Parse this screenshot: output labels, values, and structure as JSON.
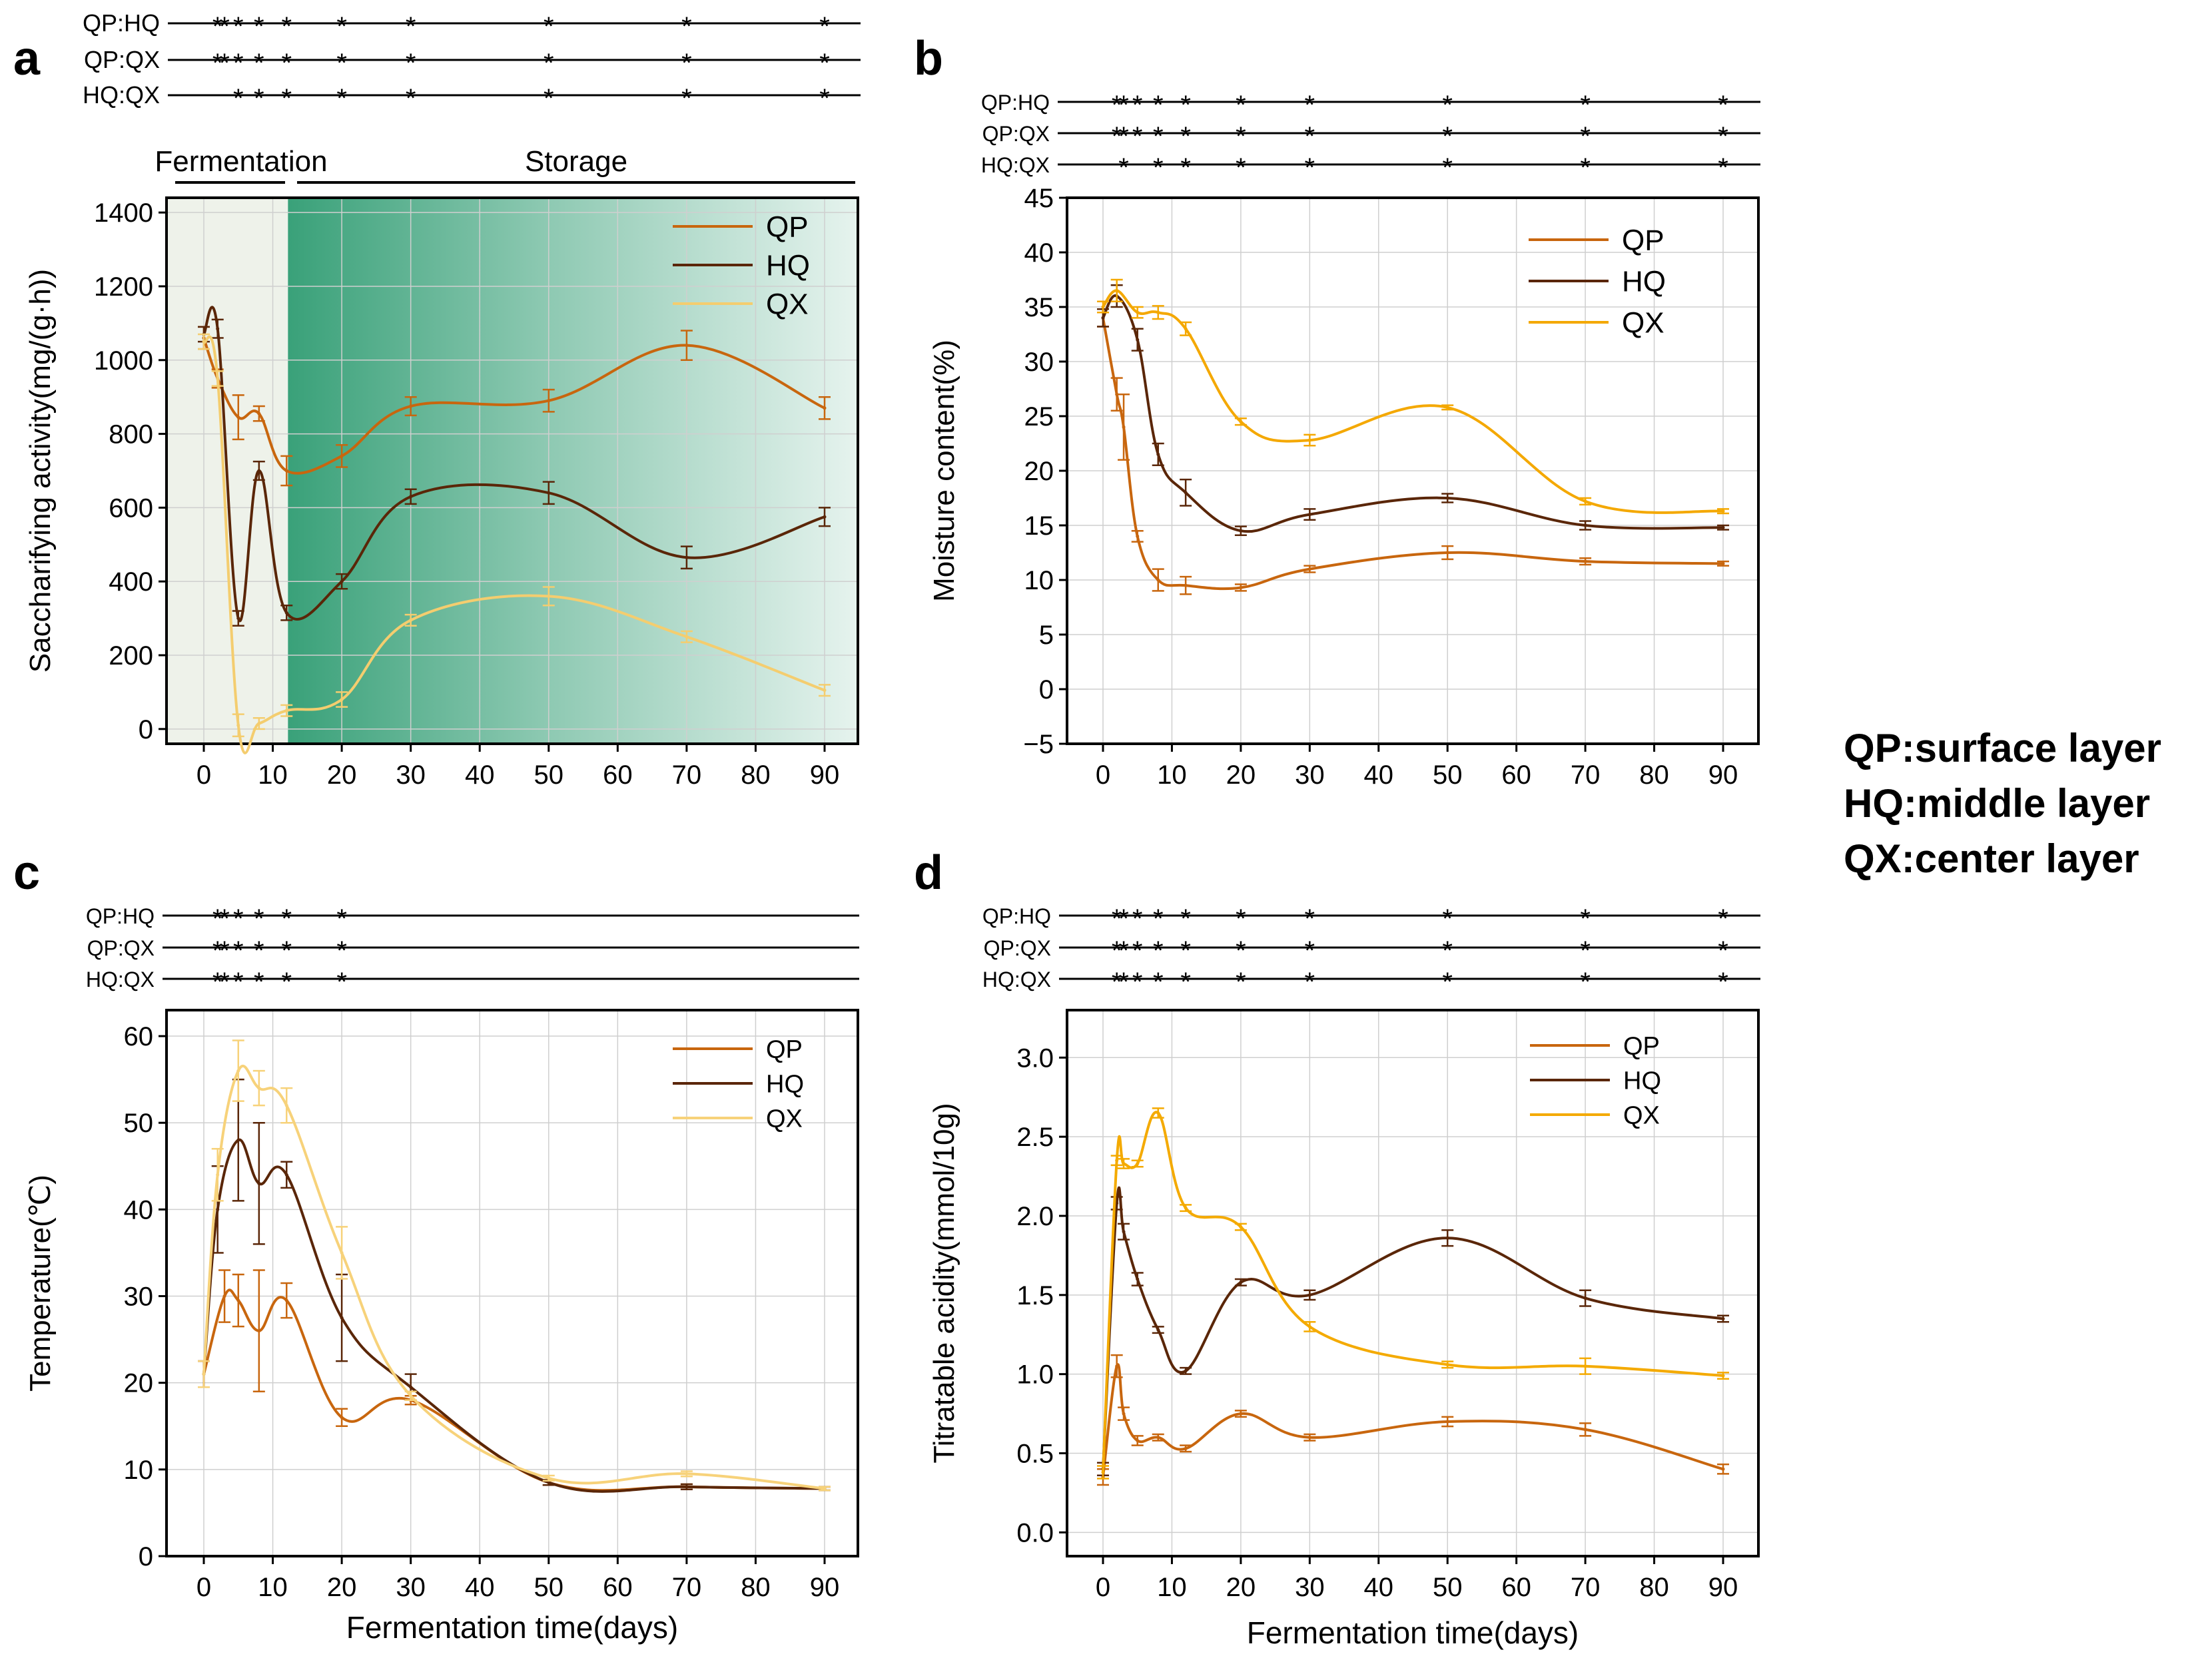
{
  "figure": {
    "legend_key": [
      "QP:surface layer",
      "HQ:middle layer",
      "QX:center layer"
    ],
    "phase_labels": {
      "fermentation": "Fermentation",
      "storage": "Storage"
    }
  },
  "colors": {
    "QP": "#c8660e",
    "HQ": "#5a2608",
    "QX_a": "#f4cd6f",
    "QX_b": "#f4a800",
    "QX_c": "#f7d27a",
    "QX_d": "#f4aa00",
    "storage_shade": "#2f9c72",
    "ferm_shade": "#eef2ea"
  },
  "chart_data": [
    {
      "panel": "a",
      "type": "line",
      "ylabel": "Saccharifying activity(mg/(g·h))",
      "xlabel": "",
      "ylim": [
        -40,
        1440
      ],
      "yticks": [
        0,
        200,
        400,
        600,
        800,
        1000,
        1200,
        1400
      ],
      "xticks": [
        0,
        10,
        20,
        30,
        40,
        50,
        60,
        70,
        80,
        90
      ],
      "significance": [
        {
          "label": "QP:HQ",
          "marks": [
            2,
            3,
            5,
            8,
            12,
            20,
            30,
            50,
            70,
            90
          ]
        },
        {
          "label": "QP:QX",
          "marks": [
            2,
            3,
            5,
            8,
            12,
            20,
            30,
            50,
            70,
            90
          ]
        },
        {
          "label": "HQ:QX",
          "marks": [
            5,
            8,
            12,
            20,
            30,
            50,
            70,
            90
          ]
        }
      ],
      "series": [
        {
          "name": "QP",
          "x": [
            0,
            2,
            5,
            8,
            12,
            20,
            30,
            50,
            70,
            90
          ],
          "values": [
            1060,
            950,
            845,
            855,
            700,
            740,
            875,
            890,
            1040,
            870
          ],
          "err": [
            30,
            25,
            60,
            20,
            40,
            30,
            25,
            30,
            40,
            30
          ]
        },
        {
          "name": "HQ",
          "x": [
            0,
            2,
            5,
            8,
            12,
            20,
            30,
            50,
            70,
            90
          ],
          "values": [
            1070,
            1085,
            300,
            700,
            315,
            400,
            630,
            640,
            465,
            575
          ],
          "err": [
            20,
            25,
            20,
            25,
            20,
            20,
            20,
            30,
            30,
            25
          ]
        },
        {
          "name": "QX",
          "x": [
            0,
            2,
            5,
            8,
            12,
            20,
            30,
            50,
            70,
            90
          ],
          "values": [
            1050,
            950,
            10,
            15,
            50,
            80,
            295,
            360,
            250,
            105
          ],
          "err": [
            20,
            20,
            30,
            15,
            15,
            20,
            15,
            25,
            15,
            15
          ]
        }
      ]
    },
    {
      "panel": "b",
      "type": "line",
      "ylabel": "Moisture content(%)",
      "xlabel": "",
      "ylim": [
        -5,
        45
      ],
      "yticks": [
        -5,
        0,
        5,
        10,
        15,
        20,
        25,
        30,
        35,
        40,
        45
      ],
      "xticks": [
        0,
        10,
        20,
        30,
        40,
        50,
        60,
        70,
        80,
        90
      ],
      "significance": [
        {
          "label": "QP:HQ",
          "marks": [
            2,
            3,
            5,
            8,
            12,
            20,
            30,
            50,
            70,
            90
          ]
        },
        {
          "label": "QP:QX",
          "marks": [
            2,
            3,
            5,
            8,
            12,
            20,
            30,
            50,
            70,
            90
          ]
        },
        {
          "label": "HQ:QX",
          "marks": [
            3,
            8,
            12,
            20,
            30,
            50,
            70,
            90
          ]
        }
      ],
      "series": [
        {
          "name": "QP",
          "x": [
            0,
            2,
            3,
            5,
            8,
            12,
            20,
            30,
            50,
            70,
            90
          ],
          "values": [
            34,
            27,
            24,
            14,
            10,
            9.5,
            9.3,
            11,
            12.5,
            11.7,
            11.5
          ],
          "err": [
            0.8,
            1.5,
            3,
            0.5,
            1,
            0.8,
            0.3,
            0.3,
            0.6,
            0.3,
            0.2
          ]
        },
        {
          "name": "HQ",
          "x": [
            0,
            2,
            5,
            8,
            12,
            20,
            30,
            50,
            70,
            90
          ],
          "values": [
            34,
            36,
            32,
            21.5,
            18,
            14.5,
            16,
            17.5,
            15,
            14.8
          ],
          "err": [
            0.8,
            1,
            1,
            1,
            1.2,
            0.4,
            0.5,
            0.4,
            0.4,
            0.2
          ]
        },
        {
          "name": "QX",
          "x": [
            0,
            2,
            5,
            8,
            12,
            20,
            30,
            50,
            70,
            90
          ],
          "values": [
            35,
            36.5,
            34.5,
            34.5,
            33,
            24.5,
            22.8,
            25.8,
            17.2,
            16.3
          ],
          "err": [
            0.5,
            1,
            0.5,
            0.6,
            0.6,
            0.3,
            0.5,
            0.2,
            0.3,
            0.2
          ]
        }
      ]
    },
    {
      "panel": "c",
      "type": "line",
      "ylabel": "Temperature(℃)",
      "xlabel": "Fermentation time(days)",
      "ylim": [
        0,
        63
      ],
      "yticks": [
        0,
        10,
        20,
        30,
        40,
        50,
        60
      ],
      "xticks": [
        0,
        10,
        20,
        30,
        40,
        50,
        60,
        70,
        80,
        90
      ],
      "significance": [
        {
          "label": "QP:HQ",
          "marks": [
            2,
            3,
            5,
            8,
            12,
            20
          ]
        },
        {
          "label": "QP:QX",
          "marks": [
            2,
            3,
            5,
            8,
            12,
            20
          ]
        },
        {
          "label": "HQ:QX",
          "marks": [
            2,
            3,
            5,
            8,
            12,
            20
          ]
        }
      ],
      "series": [
        {
          "name": "QP",
          "x": [
            0,
            3,
            5,
            8,
            12,
            20,
            30,
            50,
            70,
            90
          ],
          "values": [
            21,
            30,
            29.5,
            26,
            29.5,
            16,
            18,
            8.5,
            8,
            7.8
          ],
          "err": [
            1.5,
            3,
            3,
            7,
            2,
            1,
            0.5,
            0.3,
            0.3,
            0.2
          ]
        },
        {
          "name": "HQ",
          "x": [
            0,
            2,
            5,
            8,
            12,
            20,
            30,
            50,
            70,
            90
          ],
          "values": [
            21,
            40,
            48,
            43,
            44,
            27.5,
            19.5,
            8.5,
            8,
            7.8
          ],
          "err": [
            1.5,
            5,
            7,
            7,
            1.5,
            5,
            1.5,
            0.3,
            0.3,
            0.2
          ]
        },
        {
          "name": "QX",
          "x": [
            0,
            2,
            5,
            8,
            12,
            20,
            30,
            50,
            70,
            90
          ],
          "values": [
            21,
            44,
            56,
            54,
            52,
            35,
            18.5,
            9,
            9.5,
            7.8
          ],
          "err": [
            1.5,
            3,
            3.5,
            2,
            2,
            3,
            0.5,
            0.3,
            0.3,
            0.2
          ]
        }
      ]
    },
    {
      "panel": "d",
      "type": "line",
      "ylabel": "Titratable acidity(mmol/10g)",
      "xlabel": "Fermentation time(days)",
      "ylim": [
        -0.15,
        3.3
      ],
      "yticks": [
        0.0,
        0.5,
        1.0,
        1.5,
        2.0,
        2.5,
        3.0
      ],
      "xticks": [
        0,
        10,
        20,
        30,
        40,
        50,
        60,
        70,
        80,
        90
      ],
      "significance": [
        {
          "label": "QP:HQ",
          "marks": [
            2,
            3,
            5,
            8,
            12,
            20,
            30,
            50,
            70,
            90
          ]
        },
        {
          "label": "QP:QX",
          "marks": [
            2,
            3,
            5,
            8,
            12,
            20,
            30,
            50,
            70,
            90
          ]
        },
        {
          "label": "HQ:QX",
          "marks": [
            2,
            3,
            5,
            8,
            12,
            20,
            30,
            50,
            70,
            90
          ]
        }
      ],
      "series": [
        {
          "name": "QP",
          "x": [
            0,
            2,
            3,
            5,
            8,
            12,
            20,
            30,
            50,
            70,
            90
          ],
          "values": [
            0.35,
            1.05,
            0.75,
            0.58,
            0.6,
            0.53,
            0.75,
            0.6,
            0.7,
            0.65,
            0.4
          ],
          "err": [
            0.05,
            0.07,
            0.04,
            0.03,
            0.02,
            0.02,
            0.02,
            0.02,
            0.03,
            0.04,
            0.03
          ]
        },
        {
          "name": "HQ",
          "x": [
            0,
            2,
            3,
            5,
            8,
            12,
            20,
            30,
            50,
            70,
            90
          ],
          "values": [
            0.4,
            2.08,
            1.9,
            1.6,
            1.28,
            1.02,
            1.58,
            1.5,
            1.86,
            1.48,
            1.35
          ],
          "err": [
            0.04,
            0.04,
            0.05,
            0.04,
            0.02,
            0.02,
            0.02,
            0.03,
            0.05,
            0.05,
            0.02
          ]
        },
        {
          "name": "QX",
          "x": [
            0,
            2,
            3,
            5,
            8,
            12,
            20,
            30,
            50,
            70,
            90
          ],
          "values": [
            0.38,
            2.35,
            2.33,
            2.33,
            2.65,
            2.05,
            1.93,
            1.3,
            1.06,
            1.05,
            0.99
          ],
          "err": [
            0.04,
            0.03,
            0.03,
            0.02,
            0.03,
            0.02,
            0.02,
            0.03,
            0.02,
            0.05,
            0.02
          ]
        }
      ]
    }
  ]
}
